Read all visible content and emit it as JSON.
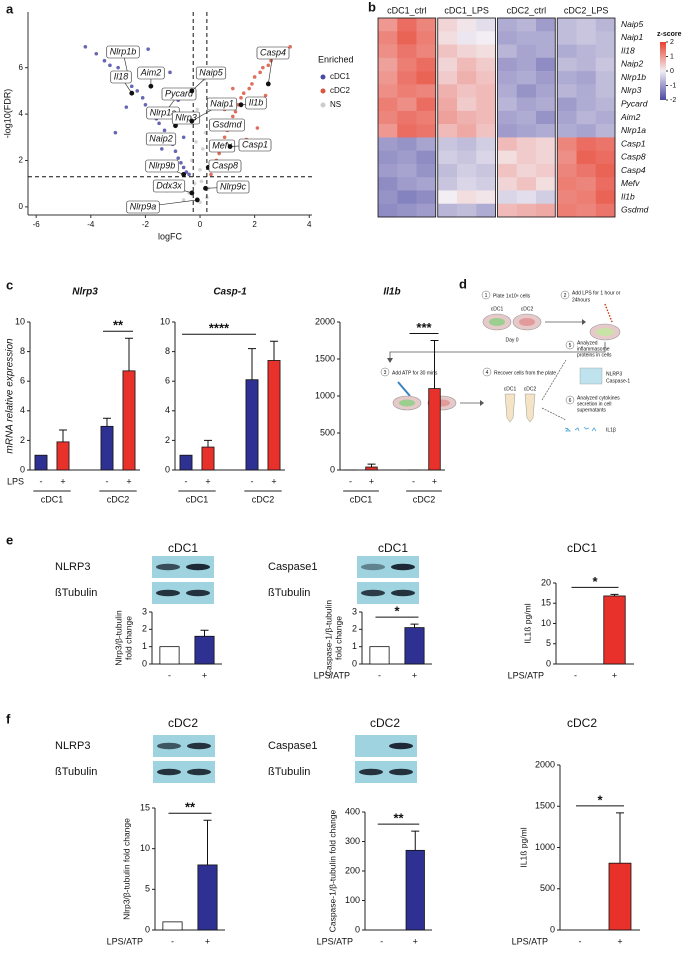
{
  "chart_data": [
    {
      "type": "scatter",
      "panel": "a",
      "xlabel": "logFC",
      "ylabel": "-log10(FDR)",
      "xlim": [
        -6.3,
        4.1
      ],
      "ylim": [
        -0.35,
        8.4
      ],
      "xticks": [
        -6,
        -4,
        -2,
        0,
        2,
        4
      ],
      "yticks": [
        0,
        2,
        4,
        6
      ],
      "legend_title": "Enriched",
      "legend": "right",
      "thresholds": {
        "y": 1.3,
        "x": [
          -0.25,
          0.25
        ]
      },
      "series": [
        {
          "name": "cDC1",
          "color": "#4b4ba6",
          "x": [
            -4.2,
            -3.8,
            -3.5,
            -3.3,
            -3.0,
            -2.8,
            -2.6,
            -2.5,
            -2.3,
            -2.1,
            -2.0,
            -1.8,
            -1.6,
            -1.5,
            -1.3,
            -1.2,
            -1.0,
            -0.9,
            -0.8,
            -0.7,
            -0.6,
            -0.5,
            -0.4,
            -1.1,
            -1.9,
            -2.7,
            -3.1,
            -0.6,
            -0.8,
            -1.4
          ],
          "values": [
            6.9,
            6.6,
            6.3,
            6.1,
            6.0,
            5.7,
            5.5,
            5.2,
            5.0,
            4.7,
            4.4,
            4.1,
            3.8,
            3.6,
            3.3,
            3.0,
            2.7,
            2.4,
            2.1,
            1.9,
            1.7,
            1.5,
            1.4,
            5.8,
            6.8,
            4.3,
            3.2,
            3.0,
            4.6,
            2.5
          ]
        },
        {
          "name": "cDC2",
          "color": "#d9553f",
          "x": [
            0.4,
            0.5,
            0.6,
            0.7,
            0.8,
            0.9,
            1.0,
            1.1,
            1.2,
            1.3,
            1.4,
            1.5,
            1.6,
            1.8,
            1.9,
            2.0,
            2.2,
            2.3,
            2.5,
            2.6,
            2.8,
            3.0,
            3.1,
            3.3,
            0.6,
            0.9,
            1.2,
            1.7,
            2.1,
            2.4
          ],
          "values": [
            1.4,
            1.7,
            2.0,
            2.3,
            2.6,
            3.0,
            3.3,
            3.6,
            3.9,
            4.1,
            4.4,
            4.7,
            4.9,
            5.1,
            5.3,
            5.6,
            5.8,
            6.0,
            6.1,
            6.3,
            6.5,
            6.6,
            6.8,
            6.9,
            3.6,
            4.2,
            5.1,
            2.9,
            3.4,
            4.8
          ]
        },
        {
          "name": "NS",
          "color": "#cccccc",
          "x": [
            -0.6,
            -0.4,
            -0.2,
            0.0,
            0.1,
            0.2,
            0.3,
            -0.1,
            0.0,
            0.15,
            -0.3,
            0.05,
            0.25,
            -0.15,
            1.0,
            -1.2
          ],
          "values": [
            0.3,
            0.6,
            1.0,
            1.6,
            2.5,
            3.2,
            0.8,
            4.2,
            0.2,
            5.5,
            2.0,
            1.1,
            0.4,
            2.8,
            0.9,
            0.7
          ]
        }
      ],
      "annotations": [
        {
          "text": "Nlrp1b",
          "x": -2.6,
          "y": 5.5
        },
        {
          "text": "Il18",
          "x": -2.5,
          "y": 4.9
        },
        {
          "text": "Aim2",
          "x": -1.8,
          "y": 5.2
        },
        {
          "text": "Pycard",
          "x": -1.2,
          "y": 4.2
        },
        {
          "text": "Nlrp1a",
          "x": -1.6,
          "y": 3.9
        },
        {
          "text": "Nlrp3",
          "x": -0.9,
          "y": 3.5
        },
        {
          "text": "Naip2",
          "x": -1.0,
          "y": 2.8
        },
        {
          "text": "Mefv",
          "x": 0.7,
          "y": 2.5
        },
        {
          "text": "Naip5",
          "x": -0.3,
          "y": 5.0
        },
        {
          "text": "Naip1",
          "x": -0.3,
          "y": 3.7
        },
        {
          "text": "Casp4",
          "x": 2.5,
          "y": 5.3
        },
        {
          "text": "Il1b",
          "x": 1.5,
          "y": 4.4
        },
        {
          "text": "Gsdmd",
          "x": 0.6,
          "y": 3.4
        },
        {
          "text": "Casp1",
          "x": 1.1,
          "y": 2.6
        },
        {
          "text": "Nlrp9b",
          "x": -0.6,
          "y": 1.4
        },
        {
          "text": "Casp8",
          "x": 0.3,
          "y": 1.7
        },
        {
          "text": "Ddx3x",
          "x": -0.3,
          "y": 0.6
        },
        {
          "text": "Nlrp9c",
          "x": 0.2,
          "y": 0.8
        },
        {
          "text": "Nlrp9a",
          "x": -0.1,
          "y": 0.3
        }
      ]
    },
    {
      "type": "heatmap",
      "panel": "b",
      "columns": [
        "cDC1_ctrl",
        "cDC1_LPS",
        "cDC2_ctrl",
        "cDC2_LPS"
      ],
      "rows": [
        "Naip5",
        "Naip1",
        "Il18",
        "Naip2",
        "Nlrp1b",
        "Nlrp3",
        "Pycard",
        "Aim2",
        "Nlrp1a",
        "Casp1",
        "Casp8",
        "Casp4",
        "Mefv",
        "Il1b",
        "Gsdmd"
      ],
      "values": [
        [
          1.0,
          1.5,
          1.2,
          0.3,
          0.1,
          -0.2,
          -0.8,
          -0.7,
          -1.0,
          -0.6,
          -0.5,
          -0.7
        ],
        [
          1.2,
          1.6,
          1.3,
          0.2,
          -0.1,
          0.0,
          -0.9,
          -0.8,
          -0.8,
          -0.6,
          -0.5,
          -0.6
        ],
        [
          1.1,
          1.4,
          1.2,
          0.5,
          0.3,
          0.2,
          -0.7,
          -0.9,
          -0.8,
          -0.8,
          -0.7,
          -0.6
        ],
        [
          0.9,
          1.3,
          1.5,
          0.3,
          0.6,
          0.4,
          -1.0,
          -0.9,
          -1.2,
          -0.6,
          -0.7,
          -0.5
        ],
        [
          1.0,
          1.4,
          1.6,
          0.4,
          0.7,
          0.5,
          -0.9,
          -0.8,
          -1.0,
          -0.8,
          -0.9,
          -0.6
        ],
        [
          1.1,
          1.3,
          1.2,
          0.7,
          0.5,
          0.6,
          -0.8,
          -1.1,
          -0.9,
          -0.7,
          -0.8,
          -0.6
        ],
        [
          1.3,
          1.1,
          1.5,
          0.8,
          0.4,
          0.6,
          -0.7,
          -0.9,
          -0.8,
          -1.0,
          -0.8,
          -0.7
        ],
        [
          1.2,
          1.4,
          1.3,
          0.9,
          0.7,
          0.6,
          -0.9,
          -0.8,
          -1.1,
          -0.9,
          -0.7,
          -0.8
        ],
        [
          1.0,
          1.5,
          1.4,
          0.6,
          0.8,
          0.5,
          -1.0,
          -0.9,
          -0.8,
          -0.8,
          -0.9,
          -0.7
        ],
        [
          -1.0,
          -1.1,
          -0.9,
          -0.5,
          -0.6,
          -0.4,
          0.6,
          0.4,
          0.3,
          1.2,
          1.5,
          1.4
        ],
        [
          -1.1,
          -1.0,
          -1.2,
          -0.4,
          -0.5,
          -0.3,
          0.2,
          0.4,
          0.3,
          1.1,
          1.6,
          1.5
        ],
        [
          -1.0,
          -0.9,
          -1.1,
          -0.6,
          -0.4,
          -0.5,
          0.5,
          0.3,
          0.4,
          1.2,
          1.4,
          1.6
        ],
        [
          -1.2,
          -1.0,
          -0.9,
          -0.5,
          -0.3,
          -0.4,
          0.3,
          0.5,
          0.2,
          1.3,
          1.2,
          1.5
        ],
        [
          -1.1,
          -1.3,
          -1.2,
          0.0,
          0.2,
          0.1,
          -0.3,
          -0.2,
          -0.4,
          1.2,
          1.3,
          1.6
        ],
        [
          -1.2,
          -1.1,
          -1.0,
          -0.7,
          -0.6,
          -0.8,
          0.6,
          0.7,
          0.8,
          1.3,
          1.2,
          1.4
        ]
      ],
      "zlim": [
        -2,
        2
      ],
      "colorscale": [
        "#4a4aa3",
        "#f3eef3",
        "#e8412f"
      ],
      "colorbar_title": "z-score",
      "colorbar_ticks": [
        2,
        1,
        0,
        -1,
        -2
      ]
    },
    {
      "type": "bar",
      "panel": "c",
      "title": "Nlrp3",
      "ylabel": "mRNA relative expression",
      "xlabel": "LPS",
      "categories": [
        "-",
        "+",
        "-",
        "+"
      ],
      "groups": [
        "cDC1",
        "cDC2"
      ],
      "values": [
        1,
        1.9,
        2.95,
        6.7
      ],
      "errors": [
        null,
        0.8,
        0.55,
        2.2
      ],
      "colors": [
        "#2e3192",
        "#e8312b",
        "#2e3192",
        "#e8312b"
      ],
      "ylim": [
        0,
        10
      ],
      "yticks": [
        0,
        2,
        4,
        6,
        8,
        10
      ],
      "significance": {
        "label": "**",
        "bars": [
          2,
          3
        ]
      }
    },
    {
      "type": "bar",
      "title": "Casp-1",
      "categories": [
        "-",
        "+",
        "-",
        "+"
      ],
      "groups": [
        "cDC1",
        "cDC2"
      ],
      "values": [
        1,
        1.55,
        6.1,
        7.4
      ],
      "errors": [
        null,
        0.45,
        2.1,
        1.3
      ],
      "colors": [
        "#2e3192",
        "#e8312b",
        "#2e3192",
        "#e8312b"
      ],
      "ylim": [
        0,
        10
      ],
      "yticks": [
        0,
        2,
        4,
        6,
        8,
        10
      ],
      "significance": {
        "label": "****",
        "bars": [
          0,
          2
        ]
      }
    },
    {
      "type": "bar",
      "title": "Il1b",
      "categories": [
        "-",
        "+",
        "-",
        "+"
      ],
      "groups": [
        "cDC1",
        "cDC2"
      ],
      "values": [
        1,
        40,
        1,
        1100
      ],
      "errors": [
        null,
        40,
        null,
        650
      ],
      "colors": [
        "#2e3192",
        "#e8312b",
        "#2e3192",
        "#e8312b"
      ],
      "ylim": [
        0,
        2000
      ],
      "yticks": [
        0,
        500,
        1000,
        1500,
        2000
      ],
      "significance": {
        "label": "***",
        "bars": [
          2,
          3
        ]
      }
    },
    {
      "type": "bar",
      "panel": "e",
      "title": "cDC1",
      "blots": [
        "NLRP3",
        "ßTubulin"
      ],
      "ylabel": [
        "Nlrp3/β-tubulin",
        "fold change"
      ],
      "categories": [
        "-",
        "+"
      ],
      "values": [
        1,
        1.6
      ],
      "errors": [
        null,
        0.35
      ],
      "colors": [
        "#ffffff",
        "#2e3192"
      ],
      "ylim": [
        0,
        3
      ],
      "yticks": [
        0,
        1,
        2,
        3
      ]
    },
    {
      "type": "bar",
      "title": "cDC1",
      "blots": [
        "Caspase1",
        "ßTubulin"
      ],
      "ylabel": [
        "Caspase-1/β-tubulin",
        "fold change"
      ],
      "xlabel": "LPS/ATP",
      "categories": [
        "-",
        "+"
      ],
      "values": [
        1,
        2.1
      ],
      "errors": [
        null,
        0.2
      ],
      "colors": [
        "#ffffff",
        "#2e3192"
      ],
      "ylim": [
        0,
        3
      ],
      "yticks": [
        0,
        1,
        2,
        3
      ],
      "significance": {
        "label": "*",
        "bars": [
          0,
          1
        ]
      }
    },
    {
      "type": "bar",
      "title": "cDC1",
      "ylabel": "IL1ß pg/ml",
      "xlabel": "LPS/ATP",
      "categories": [
        "-",
        "+"
      ],
      "values": [
        0,
        16.8
      ],
      "errors": [
        null,
        0.4
      ],
      "colors": [
        "#ffffff",
        "#e8312b"
      ],
      "ylim": [
        0,
        20
      ],
      "yticks": [
        0,
        5,
        10,
        15,
        20
      ],
      "significance": {
        "label": "*",
        "bars": [
          0,
          1
        ]
      }
    },
    {
      "type": "bar",
      "panel": "f",
      "title": "cDC2",
      "blots": [
        "NLRP3",
        "ßTubulin"
      ],
      "ylabel": "Nlrp3/β-tubulin fold change",
      "xlabel": "LPS/ATP",
      "categories": [
        "-",
        "+"
      ],
      "values": [
        1,
        8
      ],
      "errors": [
        null,
        5.5
      ],
      "colors": [
        "#ffffff",
        "#2e3192"
      ],
      "ylim": [
        0,
        15
      ],
      "yticks": [
        0,
        5,
        10,
        15
      ],
      "significance": {
        "label": "**",
        "bars": [
          0,
          1
        ]
      }
    },
    {
      "type": "bar",
      "title": "cDC2",
      "blots": [
        "Caspase1",
        "ßTubulin"
      ],
      "ylabel": "Caspase-1/β-tubulin fold change",
      "xlabel": "LPS/ATP",
      "categories": [
        "-",
        "+"
      ],
      "values": [
        0,
        270
      ],
      "errors": [
        null,
        65
      ],
      "colors": [
        "#ffffff",
        "#2e3192"
      ],
      "ylim": [
        0,
        400
      ],
      "yticks": [
        0,
        100,
        200,
        300,
        400
      ],
      "significance": {
        "label": "**",
        "bars": [
          0,
          1
        ]
      }
    },
    {
      "type": "bar",
      "title": "cDC2",
      "ylabel": "IL1ß pg/ml",
      "xlabel": "LPS/ATP",
      "categories": [
        "-",
        "+"
      ],
      "values": [
        0,
        810
      ],
      "errors": [
        null,
        610
      ],
      "colors": [
        "#ffffff",
        "#e8312b"
      ],
      "ylim": [
        0,
        2000
      ],
      "yticks": [
        0,
        500,
        1000,
        1500,
        2000
      ],
      "significance": {
        "label": "*",
        "bars": [
          0,
          1
        ]
      }
    }
  ],
  "diagram": {
    "panel": "d",
    "steps": [
      {
        "number": "1",
        "lines": [
          "Plate 1x10⁶ cells"
        ],
        "notes": [
          "cDC1",
          "cDC2",
          "Day 0"
        ]
      },
      {
        "number": "2",
        "lines": [
          "Add LPS for 1 hour or",
          "24hours"
        ]
      },
      {
        "number": "3",
        "lines": [
          "Add ATP for 30 mins"
        ]
      },
      {
        "number": "4",
        "lines": [
          "Recover cells from the plate"
        ],
        "notes": [
          "cDC1",
          "cDC2"
        ]
      },
      {
        "number": "5",
        "lines": [
          "Analyzed",
          "inflammasome",
          "proteins in cells"
        ],
        "notes": [
          "NLRP3",
          "Caspase-1"
        ]
      },
      {
        "number": "6",
        "lines": [
          "Analyzed cytokines",
          "secretion in cell",
          "supernatants"
        ],
        "notes": [
          "IL1β"
        ]
      }
    ]
  }
}
